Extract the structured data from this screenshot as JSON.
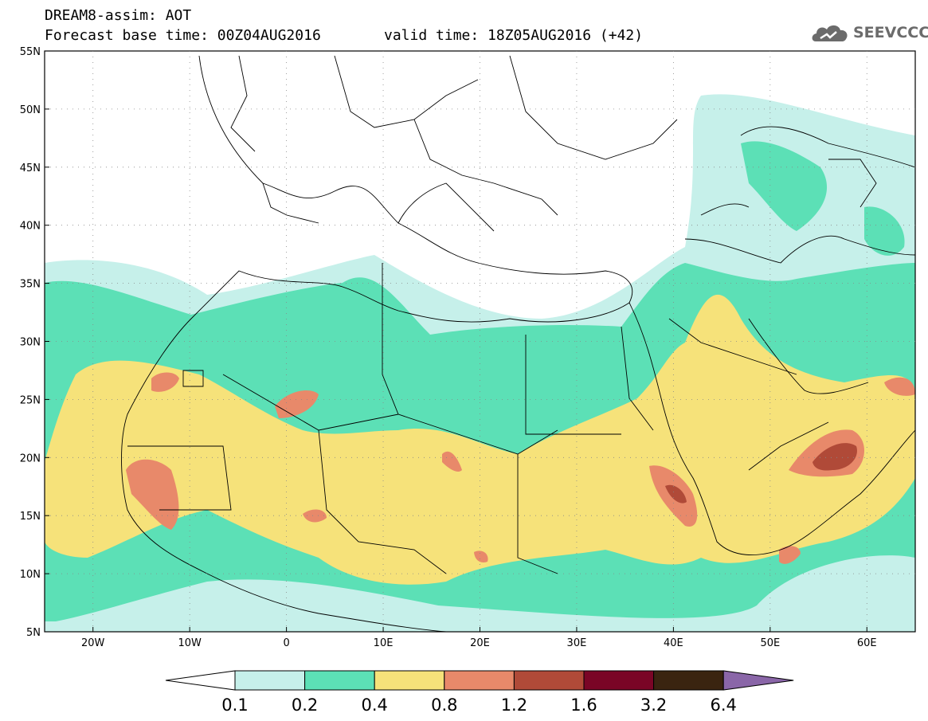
{
  "header": {
    "title_line1": "DREAM8-assim: AOT",
    "title_line2": "Forecast base time: 00Z04AUG2016",
    "valid_time": "valid time: 18Z05AUG2016 (+42)"
  },
  "logo": {
    "text": "SEEVCCC",
    "icon": "cloud-logo-icon"
  },
  "map": {
    "lat_labels": [
      "55N",
      "50N",
      "45N",
      "40N",
      "35N",
      "30N",
      "25N",
      "20N",
      "15N",
      "10N",
      "5N"
    ],
    "lon_labels": [
      "20W",
      "10W",
      "0",
      "10E",
      "20E",
      "30E",
      "40E",
      "50E",
      "60E"
    ]
  },
  "legend": {
    "labels": [
      "0.1",
      "0.2",
      "0.4",
      "0.8",
      "1.2",
      "1.6",
      "3.2",
      "6.4"
    ],
    "colors": [
      "#ffffff",
      "#c6f0ea",
      "#5ce0b6",
      "#f6e27a",
      "#e8896a",
      "#b04a38",
      "#7a0526",
      "#3a2410",
      "#8a66a8"
    ]
  }
}
